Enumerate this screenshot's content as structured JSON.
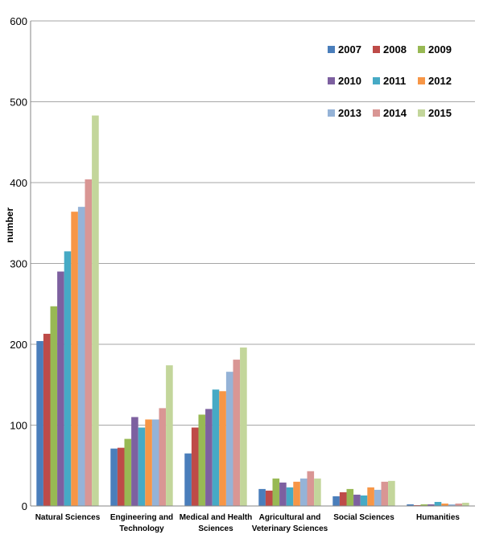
{
  "chart_data": {
    "type": "bar",
    "title": "",
    "xlabel": "",
    "ylabel": "number",
    "ylim": [
      0,
      600
    ],
    "yticks": [
      0,
      100,
      200,
      300,
      400,
      500,
      600
    ],
    "grid": true,
    "legend_position": "top-right",
    "categories": [
      [
        "Natural Sciences"
      ],
      [
        "Engineering and",
        "Technology"
      ],
      [
        "Medical and Health",
        "Sciences"
      ],
      [
        "Agricultural and",
        "Veterinary Sciences"
      ],
      [
        "Social Sciences"
      ],
      [
        "Humanities"
      ]
    ],
    "series": [
      {
        "name": "2007",
        "color": "#4a7ebb",
        "values": [
          204,
          71,
          65,
          21,
          12,
          2
        ]
      },
      {
        "name": "2008",
        "color": "#be4b48",
        "values": [
          213,
          72,
          97,
          19,
          17,
          1
        ]
      },
      {
        "name": "2009",
        "color": "#98b954",
        "values": [
          247,
          83,
          113,
          34,
          21,
          2
        ]
      },
      {
        "name": "2010",
        "color": "#7d60a0",
        "values": [
          290,
          110,
          120,
          29,
          14,
          2
        ]
      },
      {
        "name": "2011",
        "color": "#46aac5",
        "values": [
          315,
          97,
          144,
          23,
          13,
          5
        ]
      },
      {
        "name": "2012",
        "color": "#f79646",
        "values": [
          364,
          107,
          142,
          30,
          23,
          3
        ]
      },
      {
        "name": "2013",
        "color": "#95b3d7",
        "values": [
          370,
          107,
          166,
          34,
          20,
          2
        ]
      },
      {
        "name": "2014",
        "color": "#d99694",
        "values": [
          404,
          121,
          181,
          43,
          30,
          3
        ]
      },
      {
        "name": "2015",
        "color": "#c3d69b",
        "values": [
          483,
          174,
          196,
          34,
          31,
          4
        ]
      }
    ]
  }
}
